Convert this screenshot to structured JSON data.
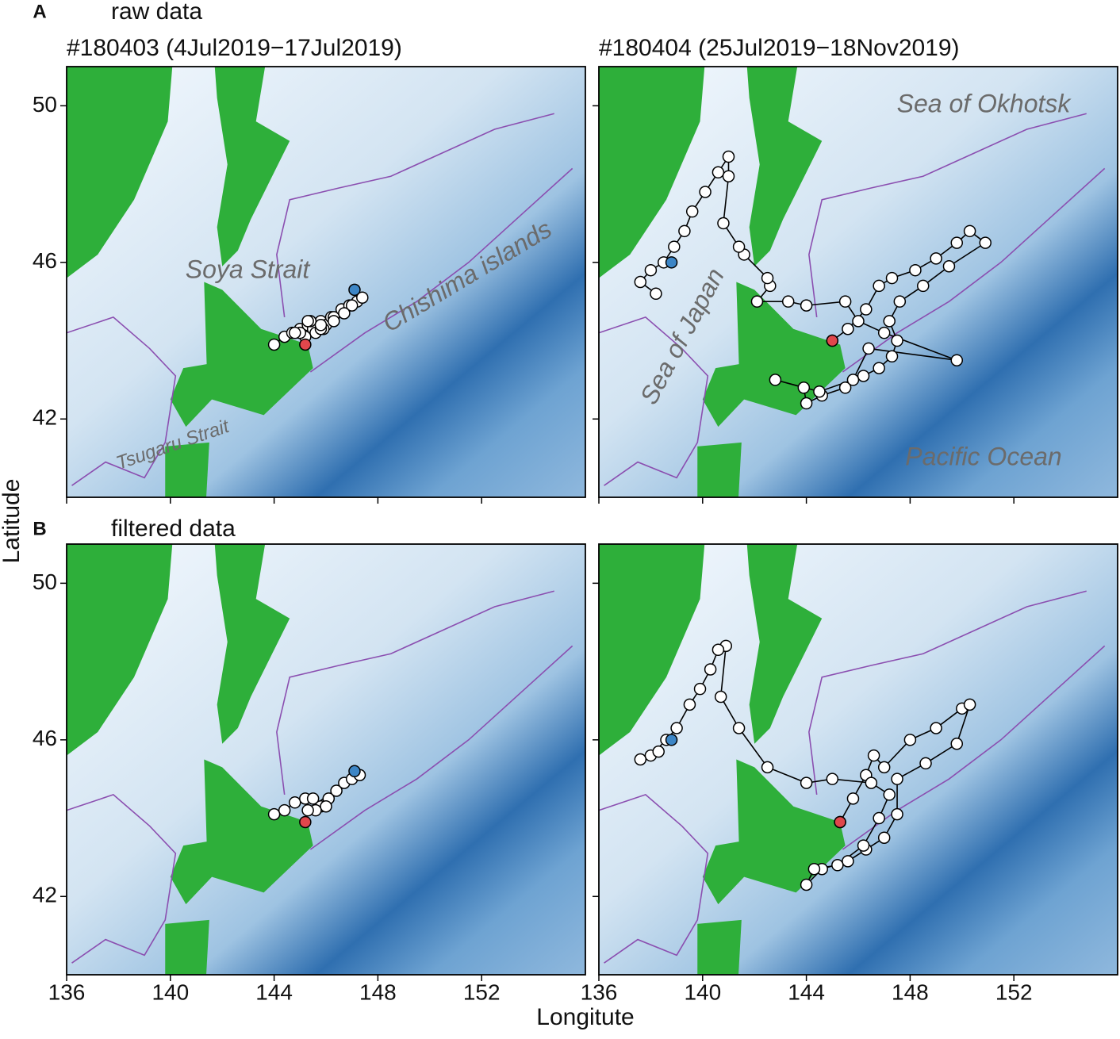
{
  "figure": {
    "panels": [
      {
        "letter": "A",
        "caption": "raw data"
      },
      {
        "letter": "B",
        "caption": "filtered data"
      }
    ],
    "xlabel": "Longitute",
    "ylabel": "Latitude",
    "places": [
      "Soya Strait",
      "Chishima islands",
      "Tsugaru Strait",
      "Sea of Japan",
      "Sea of Okhotsk",
      "Pacific Ocean"
    ]
  },
  "chart_data": [
    {
      "type": "scatter",
      "title": "#180403 (4Jul2019−17Jul2019)",
      "xlim": [
        136,
        156
      ],
      "ylim": [
        40,
        51
      ],
      "xticks": [
        136,
        140,
        144,
        148,
        152
      ],
      "yticks": [
        42,
        46,
        50
      ],
      "show_xticklabels": false,
      "show_yticklabels": true,
      "series": [
        {
          "color": "#ffffff",
          "x": [
            144.0,
            144.4,
            144.7,
            145.0,
            145.3,
            145.5,
            145.8,
            146.0,
            146.2,
            145.9,
            145.6,
            145.2,
            145.0,
            145.4,
            145.8,
            146.3,
            146.6,
            146.9,
            147.2,
            147.4,
            147.0,
            146.7,
            146.3,
            145.8,
            145.3,
            144.8
          ],
          "values": [
            43.9,
            44.1,
            44.2,
            44.3,
            44.4,
            44.3,
            44.5,
            44.4,
            44.6,
            44.3,
            44.2,
            44.1,
            44.2,
            44.5,
            44.3,
            44.6,
            44.8,
            44.9,
            45.0,
            45.1,
            44.9,
            44.7,
            44.5,
            44.4,
            44.5,
            44.2
          ]
        },
        {
          "color": "#e0474c",
          "x": [
            145.2
          ],
          "values": [
            43.9
          ]
        },
        {
          "color": "#3d86c6",
          "x": [
            147.1
          ],
          "values": [
            45.3
          ]
        }
      ]
    },
    {
      "type": "scatter",
      "title": "#180404 (25Jul2019−18Nov2019)",
      "xlim": [
        136,
        156
      ],
      "ylim": [
        40,
        51
      ],
      "xticks": [
        136,
        140,
        144,
        148,
        152
      ],
      "yticks": [
        42,
        46,
        50
      ],
      "show_xticklabels": false,
      "show_yticklabels": false,
      "series": [
        {
          "color": "#ffffff",
          "x": [
            145.0,
            145.6,
            146.3,
            146.8,
            147.3,
            148.2,
            149.0,
            149.8,
            150.3,
            150.9,
            149.5,
            148.5,
            147.6,
            147.2,
            147.5,
            147.3,
            146.8,
            146.2,
            145.5,
            144.6,
            144.0,
            143.9,
            142.8,
            144.5,
            145.8,
            146.4,
            149.8,
            147.0,
            146.0,
            145.5,
            144.0,
            143.3,
            142.1,
            142.6,
            142.5,
            141.6,
            141.4,
            140.8,
            141.0,
            141.0,
            140.6,
            140.1,
            139.6,
            139.3,
            138.9,
            138.5,
            138.0,
            137.6,
            138.2
          ],
          "values": [
            44.0,
            44.3,
            44.8,
            45.4,
            45.6,
            45.8,
            46.1,
            46.5,
            46.8,
            46.5,
            45.9,
            45.4,
            45.0,
            44.5,
            44.0,
            43.6,
            43.3,
            43.1,
            42.8,
            42.6,
            42.4,
            42.8,
            43.0,
            42.7,
            43.0,
            43.8,
            43.5,
            44.2,
            44.5,
            45.0,
            44.9,
            45.0,
            45.0,
            45.4,
            45.6,
            46.2,
            46.4,
            47.0,
            48.2,
            48.7,
            48.3,
            47.8,
            47.3,
            46.8,
            46.4,
            46.0,
            45.8,
            45.5,
            45.2
          ]
        },
        {
          "color": "#e0474c",
          "x": [
            145.0
          ],
          "values": [
            44.0
          ]
        },
        {
          "color": "#3d86c6",
          "x": [
            138.8
          ],
          "values": [
            46.0
          ]
        }
      ]
    },
    {
      "type": "scatter",
      "xlim": [
        136,
        156
      ],
      "ylim": [
        40,
        51
      ],
      "xticks": [
        136,
        140,
        144,
        148,
        152
      ],
      "yticks": [
        42,
        46,
        50
      ],
      "show_xticklabels": true,
      "show_yticklabels": true,
      "series": [
        {
          "color": "#ffffff",
          "x": [
            144.0,
            144.4,
            144.8,
            145.2,
            145.5,
            145.8,
            146.1,
            146.4,
            146.0,
            145.6,
            145.3,
            146.7,
            147.0,
            147.3
          ],
          "values": [
            44.1,
            44.2,
            44.4,
            44.5,
            44.5,
            44.3,
            44.5,
            44.7,
            44.3,
            44.2,
            44.2,
            44.9,
            45.0,
            45.1
          ]
        },
        {
          "color": "#e0474c",
          "x": [
            145.2
          ],
          "values": [
            43.9
          ]
        },
        {
          "color": "#3d86c6",
          "x": [
            147.1
          ],
          "values": [
            45.2
          ]
        }
      ]
    },
    {
      "type": "scatter",
      "xlim": [
        136,
        156
      ],
      "ylim": [
        40,
        51
      ],
      "xticks": [
        136,
        140,
        144,
        148,
        152
      ],
      "yticks": [
        42,
        46,
        50
      ],
      "show_xticklabels": true,
      "show_yticklabels": false,
      "series": [
        {
          "color": "#ffffff",
          "x": [
            145.3,
            145.8,
            146.3,
            146.6,
            147.0,
            148.0,
            149.0,
            150.0,
            150.3,
            149.8,
            148.6,
            147.5,
            147.5,
            147.0,
            146.3,
            145.6,
            144.6,
            144.0,
            144.3,
            145.2,
            146.2,
            146.8,
            147.2,
            146.5,
            145.0,
            144.0,
            142.5,
            141.4,
            140.7,
            140.9,
            140.6,
            140.3,
            139.9,
            139.5,
            139.0,
            138.6,
            138.0,
            137.6,
            138.3
          ],
          "values": [
            43.9,
            44.5,
            45.1,
            45.6,
            45.3,
            46.0,
            46.3,
            46.8,
            46.9,
            45.9,
            45.4,
            45.0,
            44.1,
            43.5,
            43.2,
            42.9,
            42.7,
            42.3,
            42.7,
            42.8,
            43.3,
            44.0,
            44.6,
            44.9,
            45.0,
            44.9,
            45.3,
            46.3,
            47.1,
            48.4,
            48.3,
            47.8,
            47.3,
            46.9,
            46.3,
            46.0,
            45.6,
            45.5,
            45.7
          ]
        },
        {
          "color": "#e0474c",
          "x": [
            145.3
          ],
          "values": [
            43.9
          ]
        },
        {
          "color": "#3d86c6",
          "x": [
            138.8
          ],
          "values": [
            46.0
          ]
        }
      ]
    }
  ]
}
